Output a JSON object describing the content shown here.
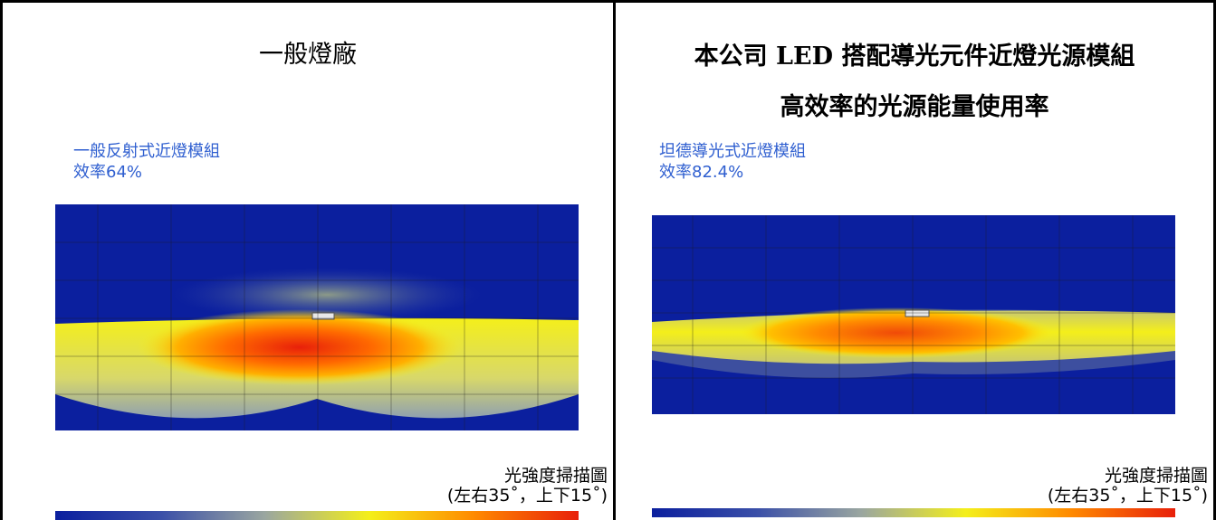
{
  "left_panel": {
    "heading": "一般燈廠",
    "module_name": "一般反射式近燈模組",
    "efficiency": "效率64%",
    "caption_line1": "光強度掃描圖",
    "caption_line2": "(左右35˚，上下15˚)"
  },
  "right_panel": {
    "heading_line1": "本公司 LED 搭配導光元件近燈光源模組",
    "heading_line2": "高效率的光源能量使用率",
    "module_name": "坦德導光式近燈模組",
    "efficiency": "效率82.4%",
    "caption_line1": "光強度掃描圖",
    "caption_line2": "(左右35˚，上下15˚)"
  },
  "colors": {
    "label_blue": "#2f5fd0",
    "plot_background": "#0b1f9e",
    "hot_red": "#e8200a",
    "warm_orange": "#ff8a00",
    "yellow": "#f4ef1a"
  }
}
